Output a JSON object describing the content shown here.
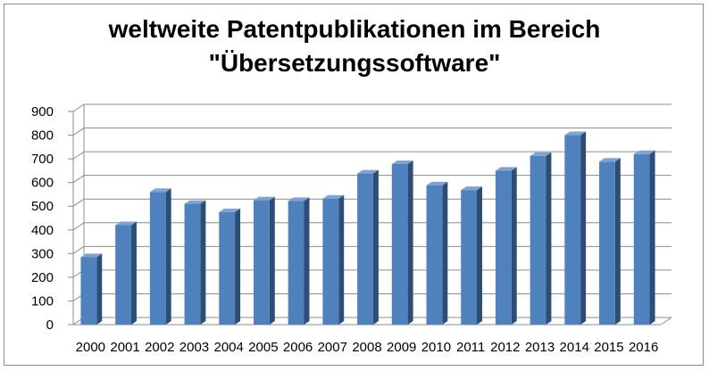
{
  "chart_data": {
    "type": "bar",
    "title_line1": "weltweite Patentpublikationen im Bereich",
    "title_line2": "\"Übersetzungssoftware\"",
    "categories": [
      "2000",
      "2001",
      "2002",
      "2003",
      "2004",
      "2005",
      "2006",
      "2007",
      "2008",
      "2009",
      "2010",
      "2011",
      "2012",
      "2013",
      "2014",
      "2015",
      "2016"
    ],
    "values": [
      285,
      420,
      560,
      510,
      475,
      525,
      522,
      532,
      638,
      678,
      588,
      568,
      650,
      712,
      800,
      688,
      720
    ],
    "xlabel": "",
    "ylabel": "",
    "ylim": [
      0,
      900
    ],
    "yticks": [
      0,
      100,
      200,
      300,
      400,
      500,
      600,
      700,
      800,
      900
    ],
    "grid": true,
    "style": "3d-column",
    "bar_color": "#4f81bd"
  }
}
